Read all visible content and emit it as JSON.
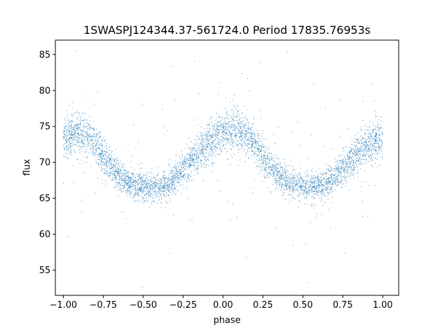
{
  "chart_data": {
    "type": "scatter",
    "title": "1SWASPJ124344.37-561724.0 Period 17835.76953s",
    "xlabel": "phase",
    "ylabel": "flux",
    "xlim": [
      -1.05,
      1.1
    ],
    "ylim": [
      51.5,
      87.0
    ],
    "xticks": [
      -1.0,
      -0.75,
      -0.5,
      -0.25,
      0.0,
      0.25,
      0.5,
      0.75,
      1.0
    ],
    "xtick_labels": [
      "−1.00",
      "−0.75",
      "−0.50",
      "−0.25",
      "0.00",
      "0.25",
      "0.50",
      "0.75",
      "1.00"
    ],
    "yticks": [
      55,
      60,
      65,
      70,
      75,
      80,
      85
    ],
    "ytick_labels": [
      "55",
      "60",
      "65",
      "70",
      "75",
      "80",
      "85"
    ],
    "grid": false,
    "series": [
      {
        "marker_color": "#1f77b4",
        "x": [
          -1.0,
          -0.95,
          -0.9,
          -0.85,
          -0.8,
          -0.75,
          -0.7,
          -0.65,
          -0.6,
          -0.55,
          -0.5,
          -0.45,
          -0.4,
          -0.35,
          -0.3,
          -0.25,
          -0.2,
          -0.15,
          -0.1,
          -0.05,
          0.0,
          0.05,
          0.1,
          0.15,
          0.2,
          0.25,
          0.3,
          0.35,
          0.4,
          0.45,
          0.5,
          0.55,
          0.6,
          0.65,
          0.7,
          0.75,
          0.8,
          0.85,
          0.9,
          0.95,
          1.0
        ],
        "y": [
          73.0,
          74.0,
          74.3,
          73.6,
          72.5,
          71.0,
          69.5,
          68.2,
          67.3,
          66.8,
          66.5,
          66.4,
          66.6,
          67.0,
          67.8,
          69.0,
          70.2,
          71.5,
          72.5,
          73.5,
          74.0,
          74.3,
          74.2,
          73.5,
          72.5,
          71.0,
          69.5,
          68.2,
          67.3,
          66.8,
          66.5,
          66.4,
          66.6,
          67.0,
          67.8,
          69.0,
          70.2,
          71.5,
          72.5,
          73.0,
          73.2
        ],
        "scatter_sd": [
          1.4,
          1.5,
          1.5,
          1.4,
          1.3,
          1.2,
          1.1,
          1.0,
          1.0,
          1.0,
          1.0,
          1.0,
          1.0,
          1.0,
          1.0,
          1.1,
          1.2,
          1.3,
          1.4,
          1.5,
          1.5,
          1.5,
          1.5,
          1.4,
          1.3,
          1.2,
          1.1,
          1.0,
          1.0,
          1.0,
          1.0,
          1.0,
          1.0,
          1.0,
          1.0,
          1.1,
          1.2,
          1.3,
          1.4,
          1.5,
          1.5
        ]
      }
    ]
  }
}
